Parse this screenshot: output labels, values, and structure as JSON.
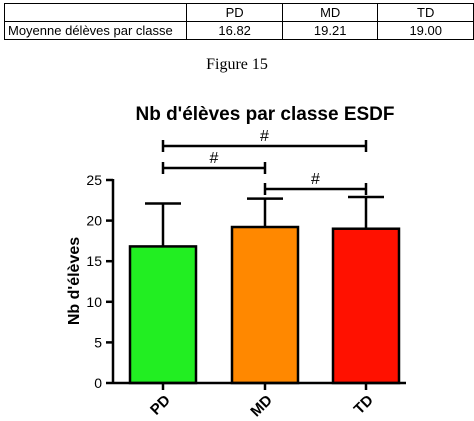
{
  "table": {
    "header": [
      "",
      "PD",
      "MD",
      "TD"
    ],
    "row_label": "Moyenne délèves par classe",
    "row_values": [
      "16.82",
      "19.21",
      "19.00"
    ]
  },
  "caption": "Figure 15",
  "chart_data": {
    "type": "bar",
    "title": "Nb d'élèves par classe ESDF",
    "ylabel": "Nb d'élèves",
    "xlabel": "",
    "categories": [
      "PD",
      "MD",
      "TD"
    ],
    "values": [
      16.82,
      19.21,
      19.0
    ],
    "error_upper": [
      22.1,
      22.7,
      22.9
    ],
    "colors": [
      "#22ee22",
      "#ff8800",
      "#ff1100"
    ],
    "ylim": [
      0,
      25
    ],
    "yticks": [
      0,
      5,
      10,
      15,
      20,
      25
    ],
    "grid": false,
    "significance": [
      {
        "from": "PD",
        "to": "MD",
        "label": "#"
      },
      {
        "from": "MD",
        "to": "TD",
        "label": "#"
      },
      {
        "from": "PD",
        "to": "TD",
        "label": "#"
      }
    ]
  }
}
